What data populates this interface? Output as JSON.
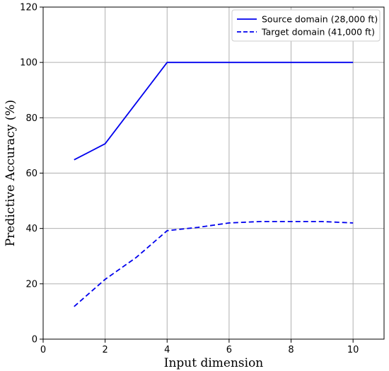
{
  "chart_data": {
    "type": "line",
    "title": "",
    "xlabel": "Input dimension",
    "ylabel": "Predictive Accuracy (%)",
    "xlim": [
      0,
      11
    ],
    "ylim": [
      0,
      120
    ],
    "xticks": [
      0,
      2,
      4,
      6,
      8,
      10
    ],
    "yticks": [
      0,
      20,
      40,
      60,
      80,
      100,
      120
    ],
    "grid": true,
    "legend_position": "top-right",
    "series": [
      {
        "name": "Source domain (28,000 ft)",
        "style": "solid",
        "color": "#0000ee",
        "x": [
          1,
          2,
          3,
          4,
          5,
          6,
          7,
          8,
          9,
          10
        ],
        "values": [
          64.8,
          70.6,
          85.3,
          100,
          100,
          100,
          100,
          100,
          100,
          100
        ]
      },
      {
        "name": "Target domain (41,000 ft)",
        "style": "dashed",
        "color": "#0000ee",
        "x": [
          1,
          2,
          3,
          4,
          5,
          6,
          7,
          8,
          9,
          10
        ],
        "values": [
          11.8,
          21.6,
          29.5,
          39.2,
          40.4,
          42,
          42.5,
          42.5,
          42.5,
          42
        ]
      }
    ]
  }
}
